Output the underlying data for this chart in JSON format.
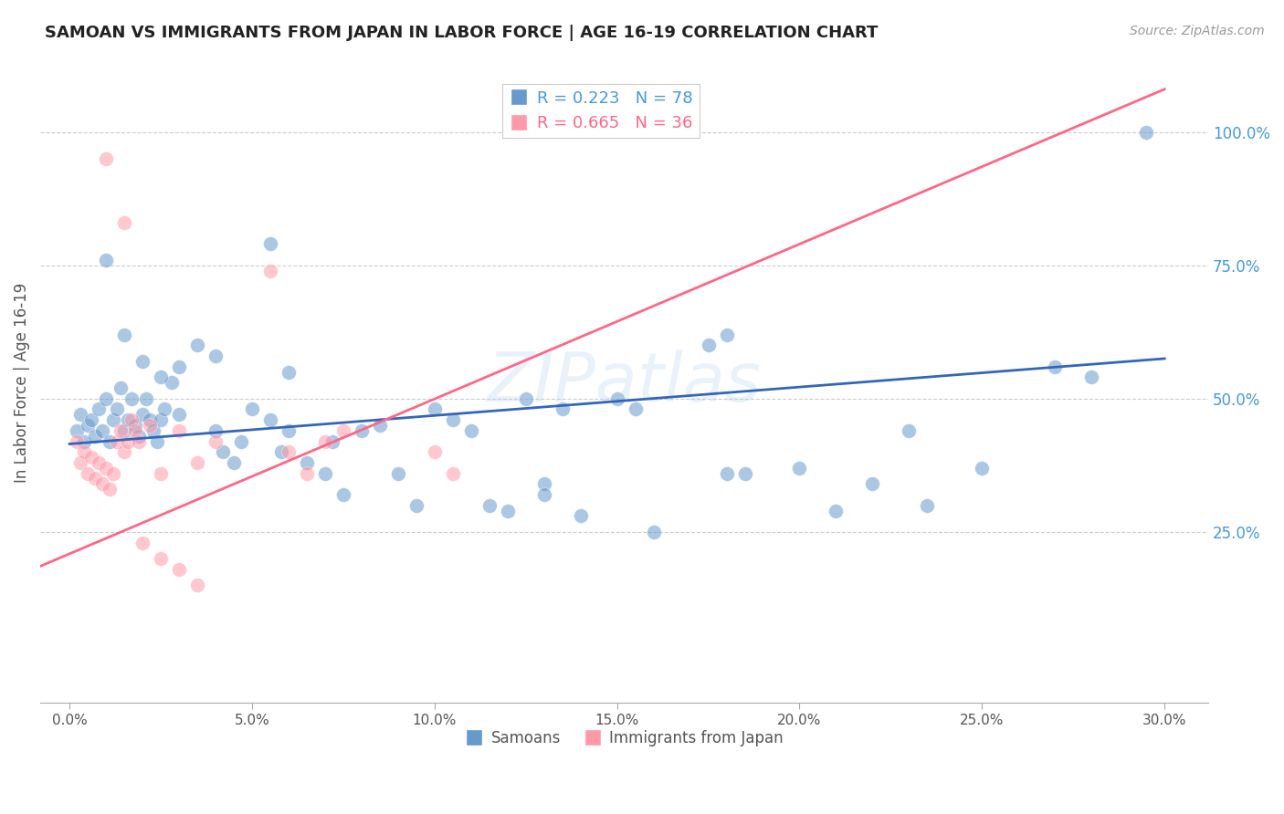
{
  "title": "SAMOAN VS IMMIGRANTS FROM JAPAN IN LABOR FORCE | AGE 16-19 CORRELATION CHART",
  "source_text": "Source: ZipAtlas.com",
  "ylabel": "In Labor Force | Age 16-19",
  "xlim": [
    -0.008,
    0.312
  ],
  "ylim": [
    -0.07,
    1.13
  ],
  "blue_color": "#6699CC",
  "pink_color": "#FF99AA",
  "blue_R": 0.223,
  "blue_N": 78,
  "pink_R": 0.665,
  "pink_N": 36,
  "watermark": "ZIPatlas",
  "legend_label_blue": "Samoans",
  "legend_label_pink": "Immigrants from Japan",
  "blue_scatter_x": [
    0.002,
    0.003,
    0.004,
    0.005,
    0.006,
    0.007,
    0.008,
    0.009,
    0.01,
    0.011,
    0.012,
    0.013,
    0.014,
    0.015,
    0.016,
    0.017,
    0.018,
    0.019,
    0.02,
    0.021,
    0.022,
    0.023,
    0.024,
    0.025,
    0.026,
    0.028,
    0.03,
    0.04,
    0.042,
    0.045,
    0.047,
    0.05,
    0.055,
    0.058,
    0.06,
    0.065,
    0.07,
    0.072,
    0.075,
    0.08,
    0.085,
    0.09,
    0.095,
    0.1,
    0.105,
    0.11,
    0.115,
    0.12,
    0.125,
    0.13,
    0.135,
    0.01,
    0.015,
    0.02,
    0.025,
    0.03,
    0.035,
    0.04,
    0.055,
    0.06,
    0.15,
    0.155,
    0.18,
    0.185,
    0.2,
    0.21,
    0.22,
    0.23,
    0.235,
    0.25,
    0.27,
    0.28,
    0.295,
    0.18,
    0.175,
    0.13,
    0.14,
    0.16
  ],
  "blue_scatter_y": [
    0.44,
    0.47,
    0.42,
    0.45,
    0.46,
    0.43,
    0.48,
    0.44,
    0.5,
    0.42,
    0.46,
    0.48,
    0.52,
    0.44,
    0.46,
    0.5,
    0.45,
    0.43,
    0.47,
    0.5,
    0.46,
    0.44,
    0.42,
    0.46,
    0.48,
    0.53,
    0.47,
    0.44,
    0.4,
    0.38,
    0.42,
    0.48,
    0.46,
    0.4,
    0.44,
    0.38,
    0.36,
    0.42,
    0.32,
    0.44,
    0.45,
    0.36,
    0.3,
    0.48,
    0.46,
    0.44,
    0.3,
    0.29,
    0.5,
    0.34,
    0.48,
    0.76,
    0.62,
    0.57,
    0.54,
    0.56,
    0.6,
    0.58,
    0.79,
    0.55,
    0.5,
    0.48,
    0.36,
    0.36,
    0.37,
    0.29,
    0.34,
    0.44,
    0.3,
    0.37,
    0.56,
    0.54,
    1.0,
    0.62,
    0.6,
    0.32,
    0.28,
    0.25
  ],
  "pink_scatter_x": [
    0.002,
    0.003,
    0.004,
    0.005,
    0.006,
    0.007,
    0.008,
    0.009,
    0.01,
    0.011,
    0.012,
    0.013,
    0.014,
    0.015,
    0.016,
    0.017,
    0.018,
    0.019,
    0.025,
    0.03,
    0.035,
    0.04,
    0.06,
    0.065,
    0.07,
    0.075,
    0.055,
    0.01,
    0.015,
    0.02,
    0.025,
    0.03,
    0.035,
    0.1,
    0.105,
    0.022
  ],
  "pink_scatter_y": [
    0.42,
    0.38,
    0.4,
    0.36,
    0.39,
    0.35,
    0.38,
    0.34,
    0.37,
    0.33,
    0.36,
    0.42,
    0.44,
    0.4,
    0.42,
    0.46,
    0.44,
    0.42,
    0.36,
    0.44,
    0.38,
    0.42,
    0.4,
    0.36,
    0.42,
    0.44,
    0.74,
    0.95,
    0.83,
    0.23,
    0.2,
    0.18,
    0.15,
    0.4,
    0.36,
    0.45
  ],
  "blue_line_x": [
    0.0,
    0.3
  ],
  "blue_line_y": [
    0.415,
    0.575
  ],
  "pink_line_x": [
    -0.01,
    0.3
  ],
  "pink_line_y": [
    0.18,
    1.08
  ]
}
